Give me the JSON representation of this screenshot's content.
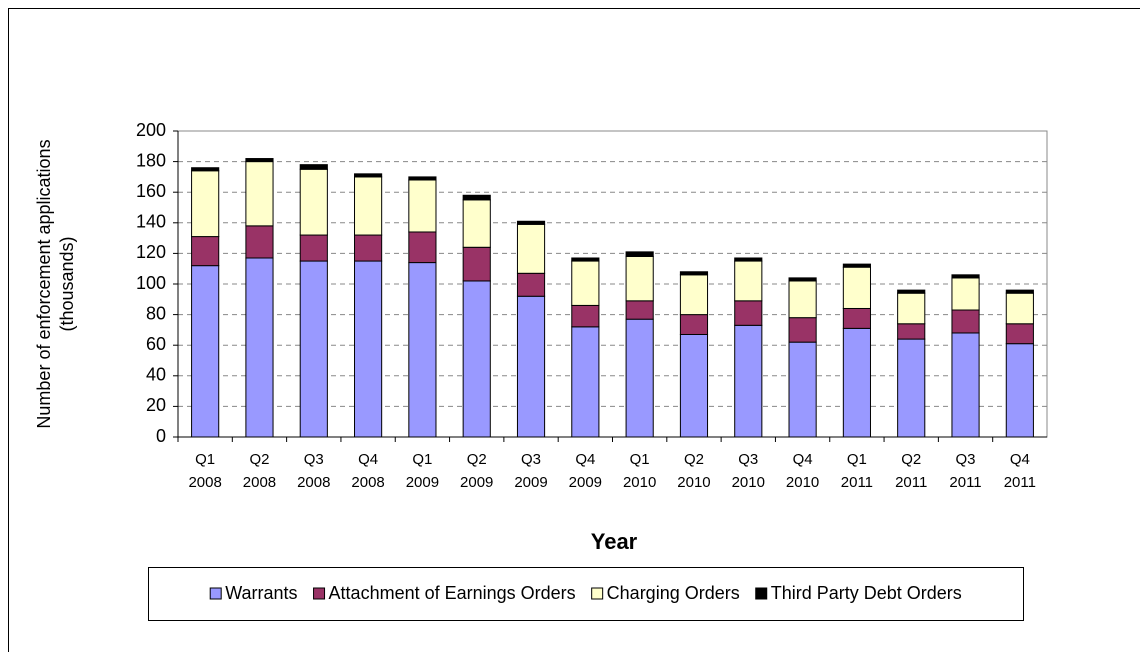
{
  "chart_data": {
    "type": "stacked_bar",
    "xlabel": "Year",
    "ylabel": [
      "Number of enforcement applications",
      "(thousands)"
    ],
    "categories": [
      "Q1 2008",
      "Q2 2008",
      "Q3 2008",
      "Q4 2008",
      "Q1 2009",
      "Q2 2009",
      "Q3 2009",
      "Q4 2009",
      "Q1 2010",
      "Q2 2010",
      "Q3 2010",
      "Q4 2010",
      "Q1 2011",
      "Q2 2011",
      "Q3 2011",
      "Q4 2011"
    ],
    "series": [
      {
        "name": "Warrants",
        "color": "#9999ff",
        "values": [
          112,
          117,
          115,
          115,
          114,
          102,
          92,
          72,
          77,
          67,
          73,
          62,
          71,
          64,
          68,
          61
        ]
      },
      {
        "name": "Attachment of Earnings Orders",
        "color": "#993366",
        "values": [
          19,
          21,
          17,
          17,
          20,
          22,
          15,
          14,
          12,
          13,
          16,
          16,
          13,
          10,
          15,
          13
        ]
      },
      {
        "name": "Charging Orders",
        "color": "#ffffcc",
        "values": [
          43,
          42,
          43,
          38,
          34,
          31,
          32,
          29,
          29,
          26,
          26,
          24,
          27,
          20,
          21,
          20
        ]
      },
      {
        "name": "Third Party Debt Orders",
        "color": "#000000",
        "values": [
          2,
          2,
          3,
          2,
          2,
          3,
          2,
          2,
          3,
          2,
          2,
          2,
          2,
          2,
          2,
          2
        ]
      }
    ],
    "ylim": [
      0,
      200
    ],
    "yticks": [
      0,
      20,
      40,
      60,
      80,
      100,
      120,
      140,
      160,
      180,
      200
    ],
    "grid": true
  }
}
